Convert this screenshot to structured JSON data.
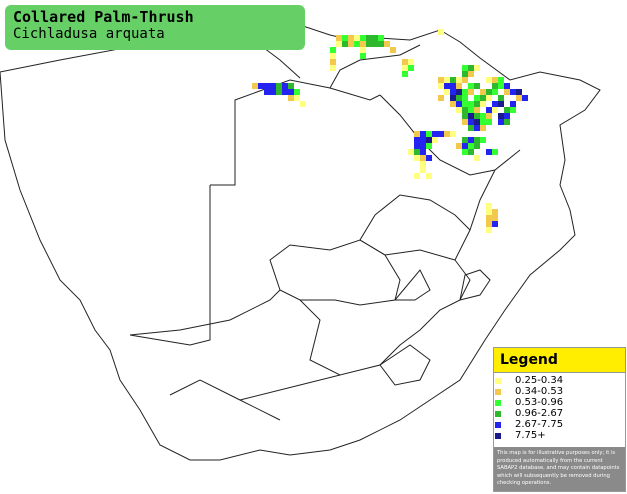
{
  "header": {
    "title": "Collared Palm-Thrush",
    "subtitle": "Cichladusa arquata"
  },
  "legend": {
    "title": "Legend",
    "items": [
      {
        "label": "0.25-0.34",
        "color": "#ffff80"
      },
      {
        "label": "0.34-0.53",
        "color": "#f2c94c"
      },
      {
        "label": "0.53-0.96",
        "color": "#33ff33"
      },
      {
        "label": "0.96-2.67",
        "color": "#2db82d"
      },
      {
        "label": "2.67-7.75",
        "color": "#2424f0"
      },
      {
        "label": "7.75+",
        "color": "#1a1a8c"
      }
    ],
    "disclaimer": "This map is for illustrative purposes only; it is produced automatically from the current SABAP2 database, and may contain datapoints which will subsequently be removed during checking operations."
  }
}
